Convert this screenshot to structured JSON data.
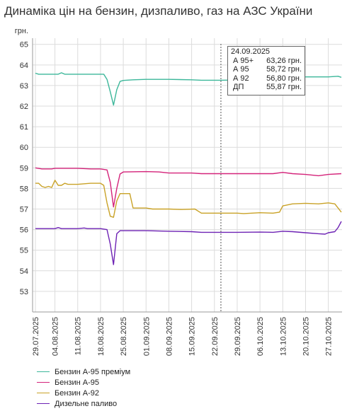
{
  "title": "Динаміка цін на бензин, дизпаливо, газ на АЗС України",
  "chart_data": {
    "type": "line",
    "title": "Динаміка цін на бензин, дизпаливо, газ на АЗС України",
    "ylabel": "грн.",
    "xlabel": "",
    "ylim": [
      52,
      65.3
    ],
    "yticks": [
      53,
      54,
      55,
      56,
      57,
      58,
      59,
      60,
      61,
      62,
      63,
      64,
      65
    ],
    "x_tick_labels": [
      "29.07.2025",
      "04.08.2025",
      "11.08.2025",
      "18.08.2025",
      "25.08.2025",
      "01.09.2025",
      "08.09.2025",
      "15.09.2025",
      "22.09.2025",
      "29.09.2025",
      "06.10.2025",
      "13.10.2025",
      "20.10.2025",
      "27.10.2025"
    ],
    "x_range": [
      "29.07.2025",
      "31.10.2025"
    ],
    "grid": true,
    "legend_position": "bottom",
    "series": [
      {
        "name": "Бензин А-95 преміум",
        "color": "#3cb79a",
        "points": [
          [
            "29.07.2025",
            63.6
          ],
          [
            "30.07.2025",
            63.55
          ],
          [
            "02.08.2025",
            63.55
          ],
          [
            "05.08.2025",
            63.55
          ],
          [
            "06.08.2025",
            63.62
          ],
          [
            "07.08.2025",
            63.55
          ],
          [
            "11.08.2025",
            63.55
          ],
          [
            "18.08.2025",
            63.55
          ],
          [
            "19.08.2025",
            63.55
          ],
          [
            "20.08.2025",
            63.3
          ],
          [
            "21.08.2025",
            62.7
          ],
          [
            "22.08.2025",
            62.05
          ],
          [
            "23.08.2025",
            62.8
          ],
          [
            "24.08.2025",
            63.2
          ],
          [
            "25.08.2025",
            63.25
          ],
          [
            "28.08.2025",
            63.28
          ],
          [
            "01.09.2025",
            63.3
          ],
          [
            "08.09.2025",
            63.3
          ],
          [
            "15.09.2025",
            63.28
          ],
          [
            "18.09.2025",
            63.26
          ],
          [
            "24.09.2025",
            63.26
          ],
          [
            "29.09.2025",
            63.27
          ],
          [
            "06.10.2025",
            63.3
          ],
          [
            "13.10.2025",
            63.4
          ],
          [
            "20.10.2025",
            63.42
          ],
          [
            "27.10.2025",
            63.42
          ],
          [
            "30.10.2025",
            63.45
          ],
          [
            "31.10.2025",
            63.4
          ]
        ]
      },
      {
        "name": "Бензин А-95",
        "color": "#d4237a",
        "points": [
          [
            "29.07.2025",
            59.0
          ],
          [
            "31.07.2025",
            58.95
          ],
          [
            "03.08.2025",
            58.95
          ],
          [
            "04.08.2025",
            58.98
          ],
          [
            "06.08.2025",
            58.98
          ],
          [
            "11.08.2025",
            58.98
          ],
          [
            "15.08.2025",
            58.95
          ],
          [
            "18.08.2025",
            58.95
          ],
          [
            "20.08.2025",
            58.9
          ],
          [
            "21.08.2025",
            58.3
          ],
          [
            "22.08.2025",
            57.1
          ],
          [
            "23.08.2025",
            58.0
          ],
          [
            "24.08.2025",
            58.7
          ],
          [
            "25.08.2025",
            58.8
          ],
          [
            "01.09.2025",
            58.82
          ],
          [
            "05.09.2025",
            58.8
          ],
          [
            "08.09.2025",
            58.75
          ],
          [
            "15.09.2025",
            58.75
          ],
          [
            "18.09.2025",
            58.72
          ],
          [
            "24.09.2025",
            58.72
          ],
          [
            "29.09.2025",
            58.72
          ],
          [
            "06.10.2025",
            58.72
          ],
          [
            "10.10.2025",
            58.72
          ],
          [
            "13.10.2025",
            58.78
          ],
          [
            "16.10.2025",
            58.72
          ],
          [
            "20.10.2025",
            58.68
          ],
          [
            "24.10.2025",
            58.62
          ],
          [
            "27.10.2025",
            58.68
          ],
          [
            "31.10.2025",
            58.72
          ]
        ]
      },
      {
        "name": "Бензин А-92",
        "color": "#c9a227",
        "points": [
          [
            "29.07.2025",
            58.25
          ],
          [
            "30.07.2025",
            58.25
          ],
          [
            "31.07.2025",
            58.1
          ],
          [
            "01.08.2025",
            58.05
          ],
          [
            "02.08.2025",
            58.1
          ],
          [
            "03.08.2025",
            58.05
          ],
          [
            "04.08.2025",
            58.4
          ],
          [
            "05.08.2025",
            58.15
          ],
          [
            "06.08.2025",
            58.15
          ],
          [
            "07.08.2025",
            58.25
          ],
          [
            "08.08.2025",
            58.2
          ],
          [
            "11.08.2025",
            58.2
          ],
          [
            "15.08.2025",
            58.25
          ],
          [
            "18.08.2025",
            58.25
          ],
          [
            "19.08.2025",
            58.15
          ],
          [
            "20.08.2025",
            57.3
          ],
          [
            "21.08.2025",
            56.65
          ],
          [
            "22.08.2025",
            56.6
          ],
          [
            "23.08.2025",
            57.4
          ],
          [
            "24.08.2025",
            57.75
          ],
          [
            "27.08.2025",
            57.75
          ],
          [
            "28.08.2025",
            57.05
          ],
          [
            "01.09.2025",
            57.05
          ],
          [
            "03.09.2025",
            57.0
          ],
          [
            "08.09.2025",
            57.0
          ],
          [
            "12.09.2025",
            56.98
          ],
          [
            "16.09.2025",
            57.0
          ],
          [
            "18.09.2025",
            56.8
          ],
          [
            "22.09.2025",
            56.8
          ],
          [
            "24.09.2025",
            56.8
          ],
          [
            "29.09.2025",
            56.8
          ],
          [
            "01.10.2025",
            56.78
          ],
          [
            "06.10.2025",
            56.82
          ],
          [
            "10.10.2025",
            56.8
          ],
          [
            "12.10.2025",
            56.85
          ],
          [
            "13.10.2025",
            57.15
          ],
          [
            "16.10.2025",
            57.25
          ],
          [
            "20.10.2025",
            57.28
          ],
          [
            "24.10.2025",
            57.25
          ],
          [
            "27.10.2025",
            57.3
          ],
          [
            "29.10.2025",
            57.25
          ],
          [
            "31.10.2025",
            56.85
          ]
        ]
      },
      {
        "name": "Дизельне паливо",
        "color": "#6d22b4",
        "points": [
          [
            "29.07.2025",
            56.05
          ],
          [
            "04.08.2025",
            56.05
          ],
          [
            "05.08.2025",
            56.1
          ],
          [
            "06.08.2025",
            56.05
          ],
          [
            "11.08.2025",
            56.05
          ],
          [
            "13.08.2025",
            56.08
          ],
          [
            "14.08.2025",
            56.05
          ],
          [
            "18.08.2025",
            56.05
          ],
          [
            "20.08.2025",
            56.0
          ],
          [
            "21.08.2025",
            55.3
          ],
          [
            "22.08.2025",
            54.3
          ],
          [
            "23.08.2025",
            55.8
          ],
          [
            "24.08.2025",
            55.95
          ],
          [
            "01.09.2025",
            55.95
          ],
          [
            "08.09.2025",
            55.92
          ],
          [
            "15.09.2025",
            55.9
          ],
          [
            "18.09.2025",
            55.87
          ],
          [
            "24.09.2025",
            55.87
          ],
          [
            "29.09.2025",
            55.87
          ],
          [
            "06.10.2025",
            55.88
          ],
          [
            "10.10.2025",
            55.87
          ],
          [
            "13.10.2025",
            55.92
          ],
          [
            "16.10.2025",
            55.9
          ],
          [
            "20.10.2025",
            55.85
          ],
          [
            "24.10.2025",
            55.8
          ],
          [
            "26.10.2025",
            55.78
          ],
          [
            "27.10.2025",
            55.85
          ],
          [
            "29.10.2025",
            55.9
          ],
          [
            "30.10.2025",
            56.1
          ],
          [
            "31.10.2025",
            56.4
          ]
        ]
      }
    ],
    "tooltip": {
      "date": "24.09.2025",
      "rows": [
        {
          "label": "А 95+",
          "value": "63,26 грн."
        },
        {
          "label": "А 95",
          "value": "58,72 грн."
        },
        {
          "label": "А 92",
          "value": "56,80 грн."
        },
        {
          "label": "ДП",
          "value": "55,87 грн."
        }
      ]
    }
  }
}
